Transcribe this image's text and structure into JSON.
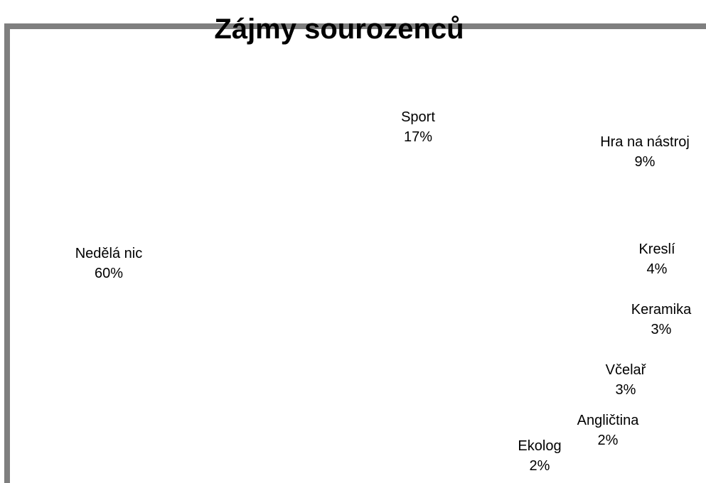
{
  "chart_data": {
    "type": "pie",
    "title": "Zájmy sourozenců",
    "legend": "none",
    "slices": [
      {
        "label": "Nedělá nic",
        "percent_label": "60%",
        "value": 60
      },
      {
        "label": "Sport",
        "percent_label": "17%",
        "value": 17
      },
      {
        "label": "Hra na nástroj",
        "percent_label": "9%",
        "value": 9
      },
      {
        "label": "Kreslí",
        "percent_label": "4%",
        "value": 4
      },
      {
        "label": "Keramika",
        "percent_label": "3%",
        "value": 3
      },
      {
        "label": "Včelař",
        "percent_label": "3%",
        "value": 3
      },
      {
        "label": "Angličtina",
        "percent_label": "2%",
        "value": 2
      },
      {
        "label": "Ekolog",
        "percent_label": "2%",
        "value": 2
      }
    ]
  }
}
